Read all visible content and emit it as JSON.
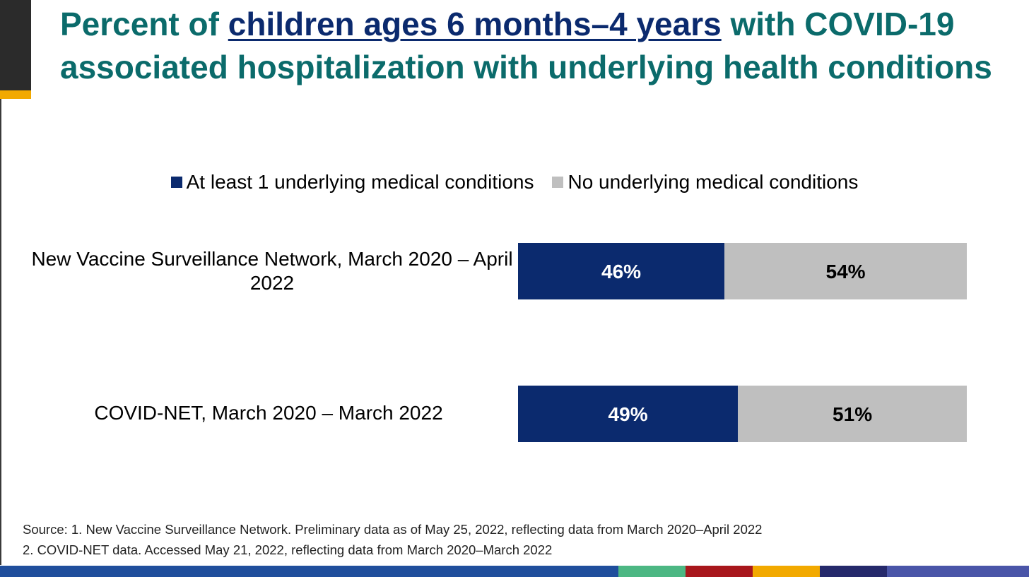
{
  "title": {
    "prefix": "Percent of ",
    "highlight": "children ages 6 months–4 years",
    "suffix": " with COVID-19 associated hospitalization with underlying health conditions"
  },
  "colors": {
    "title": "#0b6b6b",
    "title_highlight": "#0b2a6e",
    "with_condition": "#0b2a6e",
    "without_condition": "#bfbfbf"
  },
  "chart_data": {
    "type": "bar",
    "orientation": "horizontal",
    "stacked": true,
    "normalized_percent": true,
    "categories": [
      "New Vaccine Surveillance Network, March 2020 – April 2022",
      "COVID-NET, March 2020 – March 2022"
    ],
    "series": [
      {
        "name": "At least 1 underlying medical conditions",
        "values": [
          46,
          49
        ],
        "labels": [
          "46%",
          "49%"
        ],
        "color": "#0b2a6e",
        "label_color": "#ffffff"
      },
      {
        "name": "No underlying medical conditions",
        "values": [
          54,
          51
        ],
        "labels": [
          "54%",
          "51%"
        ],
        "color": "#bfbfbf",
        "label_color": "#000000"
      }
    ],
    "xlim": [
      0,
      100
    ],
    "grid": false,
    "axes_visible": false,
    "legend": "top-center"
  },
  "source": {
    "line1": "Source: 1. New Vaccine Surveillance Network. Preliminary data as of May 25, 2022, reflecting data from March 2020–April 2022",
    "line2": "2. COVID-NET data. Accessed May 21, 2022, reflecting data from March 2020–March 2022"
  },
  "footer_stripe_colors": [
    "#1f4e9c",
    "#4cb783",
    "#a8171c",
    "#f2a900",
    "#25296b",
    "#4a55a8"
  ]
}
